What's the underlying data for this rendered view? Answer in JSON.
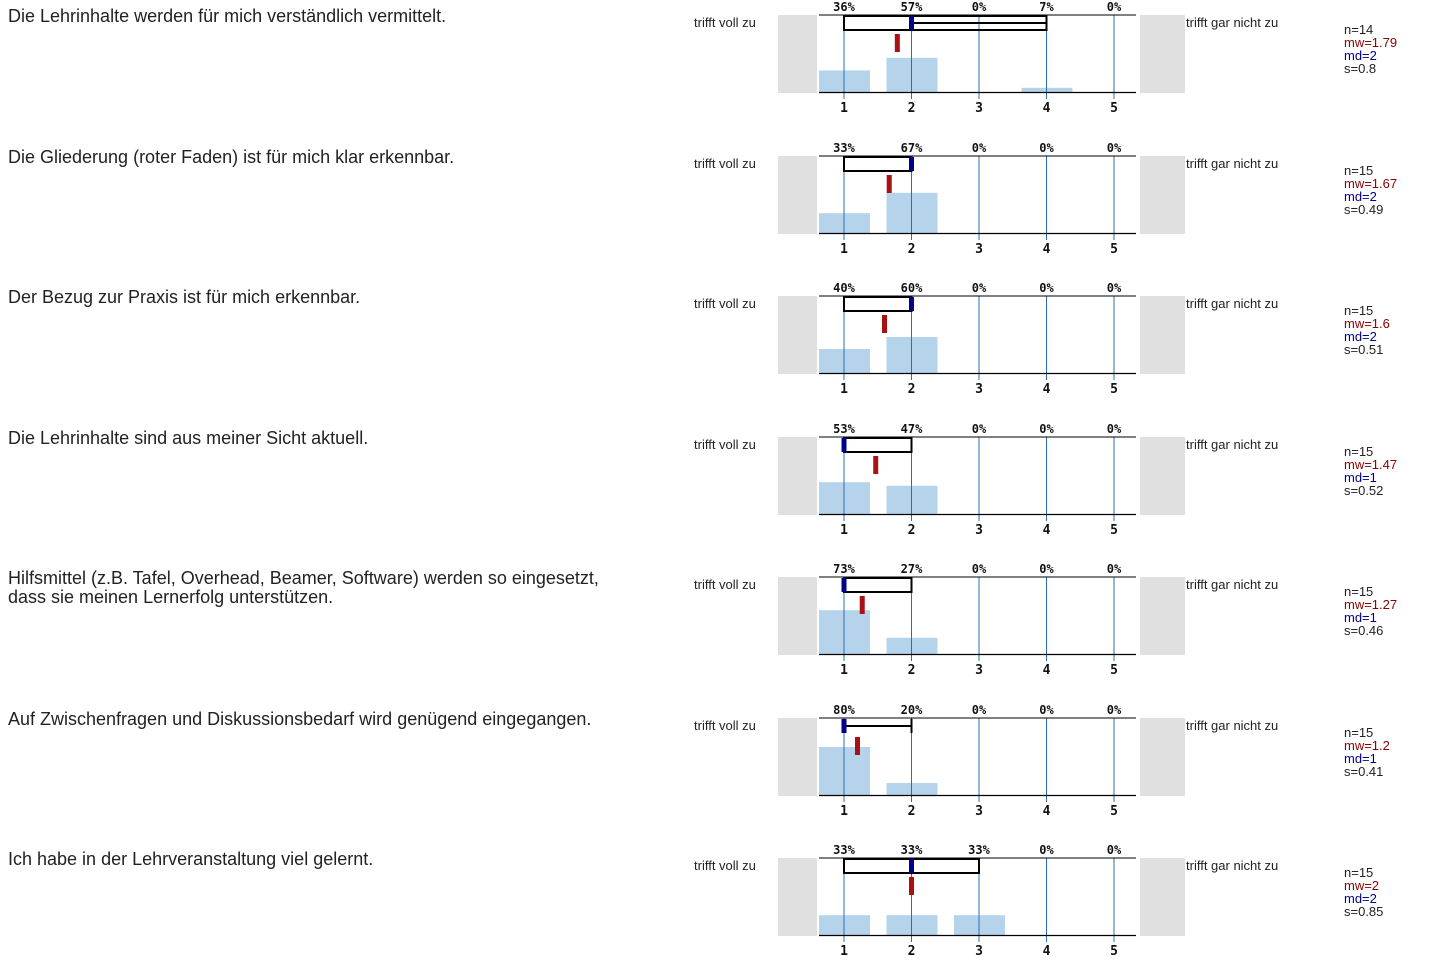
{
  "labels": {
    "left": "trifft voll zu",
    "right": "trifft gar nicht zu"
  },
  "colors": {
    "bar": "#b5d4ec",
    "grid": "#2a6fb5",
    "side": "#e0e0e0",
    "mean": "#aa1111",
    "median": "#00008b"
  },
  "chart_data": [
    {
      "type": "bar",
      "title": "Die Lehrinhalte werden für mich verständlich vermittelt.",
      "categories": [
        "1",
        "2",
        "3",
        "4",
        "5"
      ],
      "values": [
        36,
        57,
        0,
        7,
        0
      ],
      "percent_labels": [
        "36%",
        "57%",
        "0%",
        "7%",
        "0%"
      ],
      "range": [
        1,
        4
      ],
      "mean": 1.79,
      "median": 2,
      "stats": {
        "n": "n=14",
        "mw": "mw=1.79",
        "md": "md=2",
        "s": "s=0.8"
      }
    },
    {
      "type": "bar",
      "title": "Die Gliederung (roter Faden) ist für mich klar erkennbar.",
      "categories": [
        "1",
        "2",
        "3",
        "4",
        "5"
      ],
      "values": [
        33,
        67,
        0,
        0,
        0
      ],
      "percent_labels": [
        "33%",
        "67%",
        "0%",
        "0%",
        "0%"
      ],
      "range": [
        1,
        2
      ],
      "mean": 1.67,
      "median": 2,
      "stats": {
        "n": "n=15",
        "mw": "mw=1.67",
        "md": "md=2",
        "s": "s=0.49"
      }
    },
    {
      "type": "bar",
      "title": "Der Bezug zur Praxis ist für mich erkennbar.",
      "categories": [
        "1",
        "2",
        "3",
        "4",
        "5"
      ],
      "values": [
        40,
        60,
        0,
        0,
        0
      ],
      "percent_labels": [
        "40%",
        "60%",
        "0%",
        "0%",
        "0%"
      ],
      "range": [
        1,
        2
      ],
      "mean": 1.6,
      "median": 2,
      "stats": {
        "n": "n=15",
        "mw": "mw=1.6",
        "md": "md=2",
        "s": "s=0.51"
      }
    },
    {
      "type": "bar",
      "title": "Die Lehrinhalte sind aus meiner Sicht aktuell.",
      "categories": [
        "1",
        "2",
        "3",
        "4",
        "5"
      ],
      "values": [
        53,
        47,
        0,
        0,
        0
      ],
      "percent_labels": [
        "53%",
        "47%",
        "0%",
        "0%",
        "0%"
      ],
      "range": [
        1,
        2
      ],
      "mean": 1.47,
      "median": 1,
      "stats": {
        "n": "n=15",
        "mw": "mw=1.47",
        "md": "md=1",
        "s": "s=0.52"
      }
    },
    {
      "type": "bar",
      "title": "Hilfsmittel (z.B. Tafel, Overhead, Beamer, Software) werden so eingesetzt, dass sie meinen Lernerfolg unterstützen.",
      "categories": [
        "1",
        "2",
        "3",
        "4",
        "5"
      ],
      "values": [
        73,
        27,
        0,
        0,
        0
      ],
      "percent_labels": [
        "73%",
        "27%",
        "0%",
        "0%",
        "0%"
      ],
      "range": [
        1,
        2
      ],
      "mean": 1.27,
      "median": 1,
      "stats": {
        "n": "n=15",
        "mw": "mw=1.27",
        "md": "md=1",
        "s": "s=0.46"
      }
    },
    {
      "type": "bar",
      "title": "Auf Zwischenfragen und Diskussionsbedarf wird genügend eingegangen.",
      "categories": [
        "1",
        "2",
        "3",
        "4",
        "5"
      ],
      "values": [
        80,
        20,
        0,
        0,
        0
      ],
      "percent_labels": [
        "80%",
        "20%",
        "0%",
        "0%",
        "0%"
      ],
      "range": [
        1,
        2
      ],
      "mean": 1.2,
      "median": 1,
      "stats": {
        "n": "n=15",
        "mw": "mw=1.2",
        "md": "md=1",
        "s": "s=0.41"
      }
    },
    {
      "type": "bar",
      "title": "Ich habe in der Lehrveranstaltung viel gelernt.",
      "categories": [
        "1",
        "2",
        "3",
        "4",
        "5"
      ],
      "values": [
        33,
        33,
        33,
        0,
        0
      ],
      "percent_labels": [
        "33%",
        "33%",
        "33%",
        "0%",
        "0%"
      ],
      "range": [
        1,
        3
      ],
      "mean": 2,
      "median": 2,
      "stats": {
        "n": "n=15",
        "mw": "mw=2",
        "md": "md=2",
        "s": "s=0.85"
      }
    }
  ]
}
